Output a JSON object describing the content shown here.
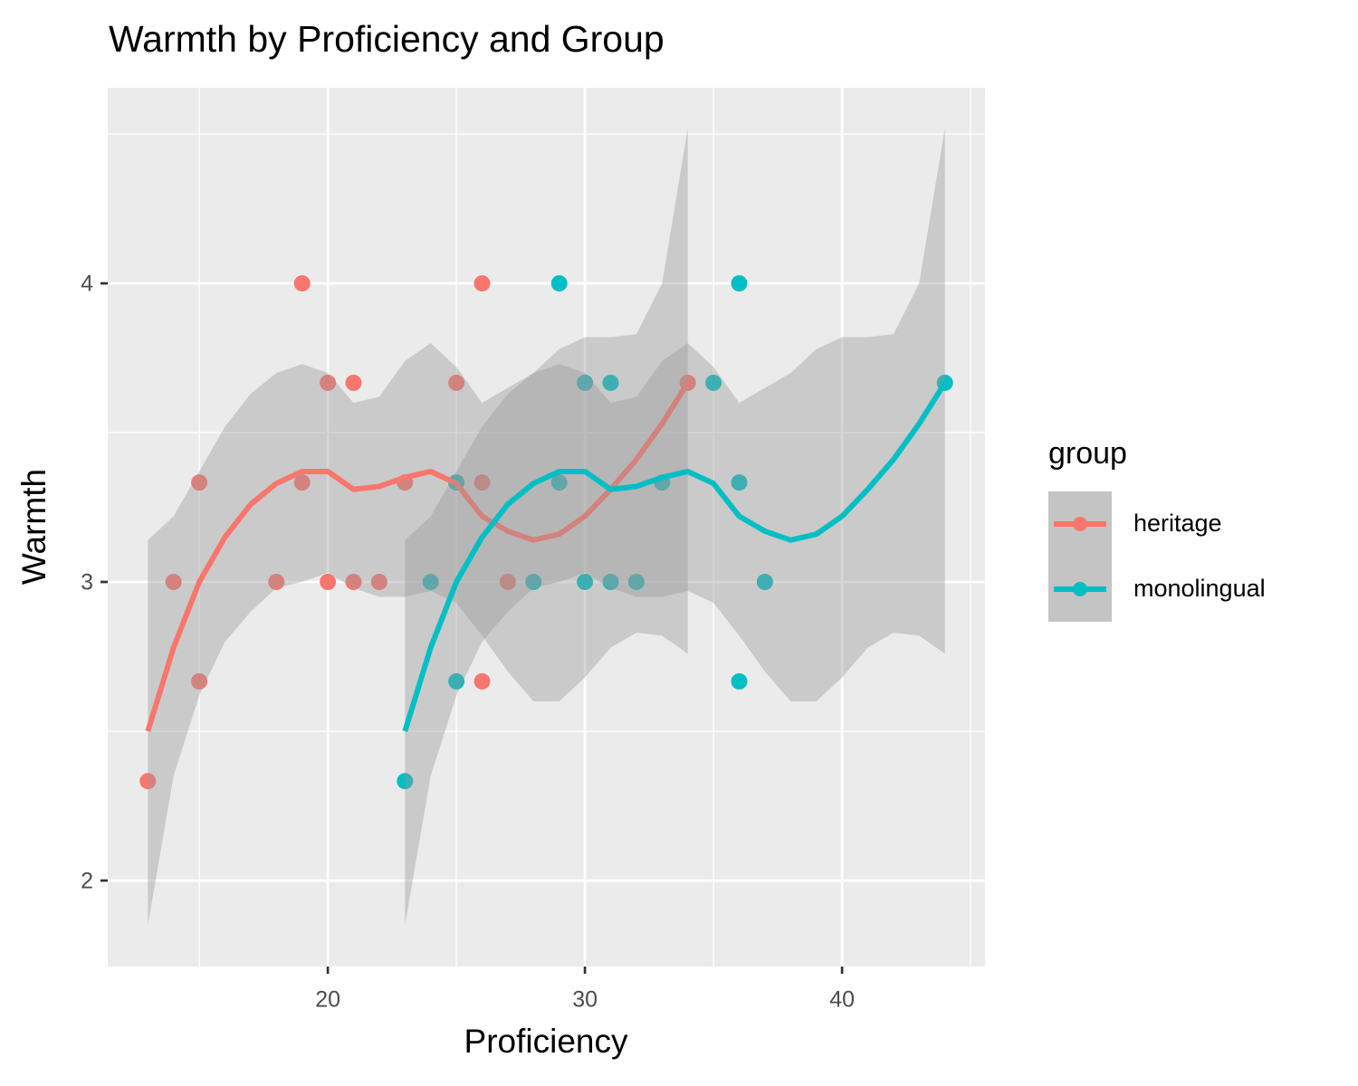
{
  "chart_data": {
    "type": "scatter",
    "title": "Warmth by Proficiency and Group",
    "x_label": "Proficiency",
    "y_label": "Warmth",
    "legend_title": "group",
    "legend": "right",
    "xlim": [
      11.44,
      45.56
    ],
    "ylim": [
      1.712,
      4.655
    ],
    "xticks": [
      20,
      30,
      40
    ],
    "yticks": [
      2,
      3,
      4
    ],
    "x_minor_ticks": [
      15,
      25,
      35,
      45
    ],
    "y_minor_ticks": [
      2.5,
      3.5,
      4.5
    ],
    "grid": true,
    "band_color": "#999999",
    "series": [
      {
        "name": "heritage",
        "color": "#F8766D",
        "x": [
          13,
          14,
          15,
          15,
          18,
          19,
          19,
          20,
          20,
          21,
          21,
          22,
          23,
          25,
          26,
          26,
          26,
          27,
          34
        ],
        "values": [
          2.333,
          3,
          3.333,
          2.667,
          3,
          4,
          3.333,
          3.667,
          3,
          3.667,
          3,
          3,
          3.333,
          3.667,
          4,
          3.333,
          2.667,
          3,
          3.667
        ],
        "smooth": {
          "x": [
            13,
            14,
            15,
            16,
            17,
            18,
            19,
            20,
            21,
            22,
            23,
            24,
            25,
            26,
            27,
            28,
            29,
            30,
            31,
            32,
            33,
            34
          ],
          "values": [
            2.5,
            2.78,
            3.0,
            3.15,
            3.26,
            3.33,
            3.37,
            3.37,
            3.31,
            3.32,
            3.35,
            3.37,
            3.33,
            3.22,
            3.17,
            3.14,
            3.16,
            3.22,
            3.31,
            3.41,
            3.53,
            3.667
          ],
          "lower": [
            1.85,
            2.35,
            2.62,
            2.8,
            2.9,
            2.98,
            3.0,
            3.03,
            2.98,
            2.95,
            2.95,
            2.97,
            2.93,
            2.82,
            2.7,
            2.6,
            2.6,
            2.68,
            2.78,
            2.83,
            2.82,
            2.76
          ],
          "upper": [
            3.14,
            3.22,
            3.37,
            3.52,
            3.63,
            3.7,
            3.73,
            3.7,
            3.6,
            3.62,
            3.74,
            3.8,
            3.72,
            3.6,
            3.65,
            3.7,
            3.78,
            3.82,
            3.82,
            3.83,
            4.0,
            4.52
          ]
        }
      },
      {
        "name": "monolingual",
        "color": "#00BFC4",
        "x": [
          23,
          24,
          25,
          25,
          28,
          29,
          29,
          30,
          30,
          31,
          31,
          32,
          33,
          35,
          36,
          36,
          36,
          37,
          44
        ],
        "values": [
          2.333,
          3,
          3.333,
          2.667,
          3,
          4,
          3.333,
          3.667,
          3,
          3.667,
          3,
          3,
          3.333,
          3.667,
          4,
          3.333,
          2.667,
          3,
          3.667
        ],
        "smooth": {
          "x": [
            23,
            24,
            25,
            26,
            27,
            28,
            29,
            30,
            31,
            32,
            33,
            34,
            35,
            36,
            37,
            38,
            39,
            40,
            41,
            42,
            43,
            44
          ],
          "values": [
            2.5,
            2.78,
            3.0,
            3.15,
            3.26,
            3.33,
            3.37,
            3.37,
            3.31,
            3.32,
            3.35,
            3.37,
            3.33,
            3.22,
            3.17,
            3.14,
            3.16,
            3.22,
            3.31,
            3.41,
            3.53,
            3.667
          ],
          "lower": [
            1.85,
            2.35,
            2.62,
            2.8,
            2.9,
            2.98,
            3.0,
            3.03,
            2.98,
            2.95,
            2.95,
            2.97,
            2.93,
            2.82,
            2.7,
            2.6,
            2.6,
            2.68,
            2.78,
            2.83,
            2.82,
            2.76
          ],
          "upper": [
            3.14,
            3.22,
            3.37,
            3.52,
            3.63,
            3.7,
            3.73,
            3.7,
            3.6,
            3.62,
            3.74,
            3.8,
            3.72,
            3.6,
            3.65,
            3.7,
            3.78,
            3.82,
            3.82,
            3.83,
            4.0,
            4.52
          ]
        }
      }
    ]
  }
}
